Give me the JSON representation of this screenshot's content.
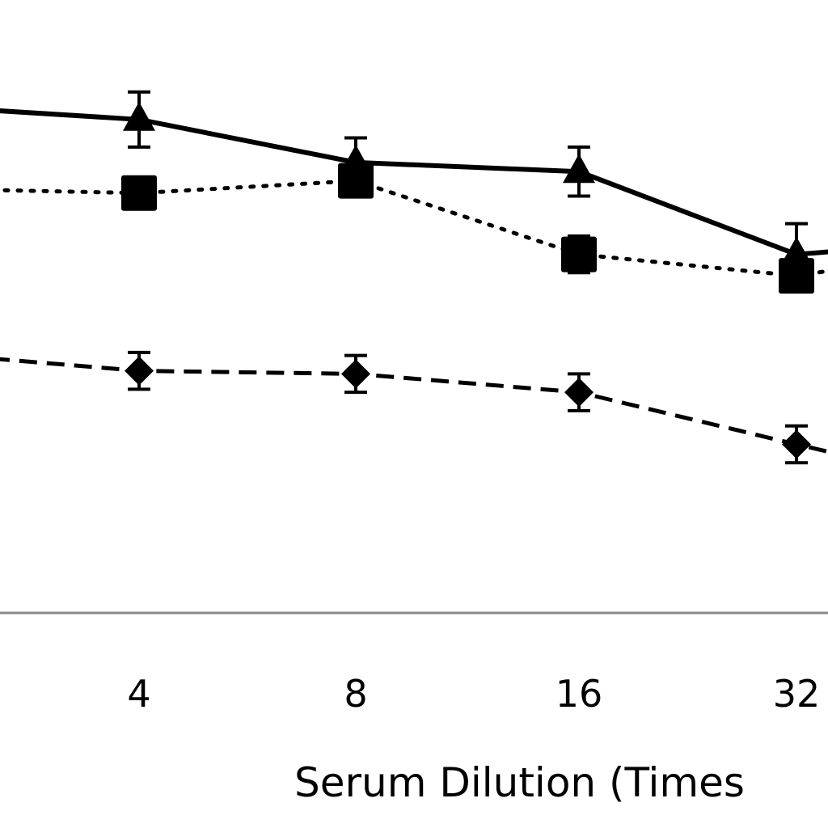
{
  "chart_data": {
    "type": "line",
    "title": "",
    "xlabel": "Serum Dilution (Times",
    "ylabel": "",
    "x": [
      "4",
      "8",
      "16",
      "32"
    ],
    "ylim": [
      0,
      100
    ],
    "grid": false,
    "legend": "none",
    "series": [
      {
        "style": "solid",
        "marker": "triangle",
        "left_edge_value": 82,
        "values": [
          80.5,
          73.5,
          72,
          58.5
        ],
        "errors": [
          4.5,
          4,
          4,
          5
        ],
        "right_edge_value": 59
      },
      {
        "style": "dotted",
        "marker": "square",
        "left_edge_value": 69,
        "values": [
          68.5,
          70.5,
          58.5,
          55
        ],
        "errors": [
          0,
          0,
          3,
          0
        ],
        "right_edge_value": 56
      },
      {
        "style": "dashed",
        "marker": "diamond",
        "left_edge_value": 41.5,
        "values": [
          39.5,
          39,
          36,
          27.5
        ],
        "errors": [
          3,
          3,
          3,
          3
        ],
        "right_edge_value": 26
      }
    ]
  }
}
